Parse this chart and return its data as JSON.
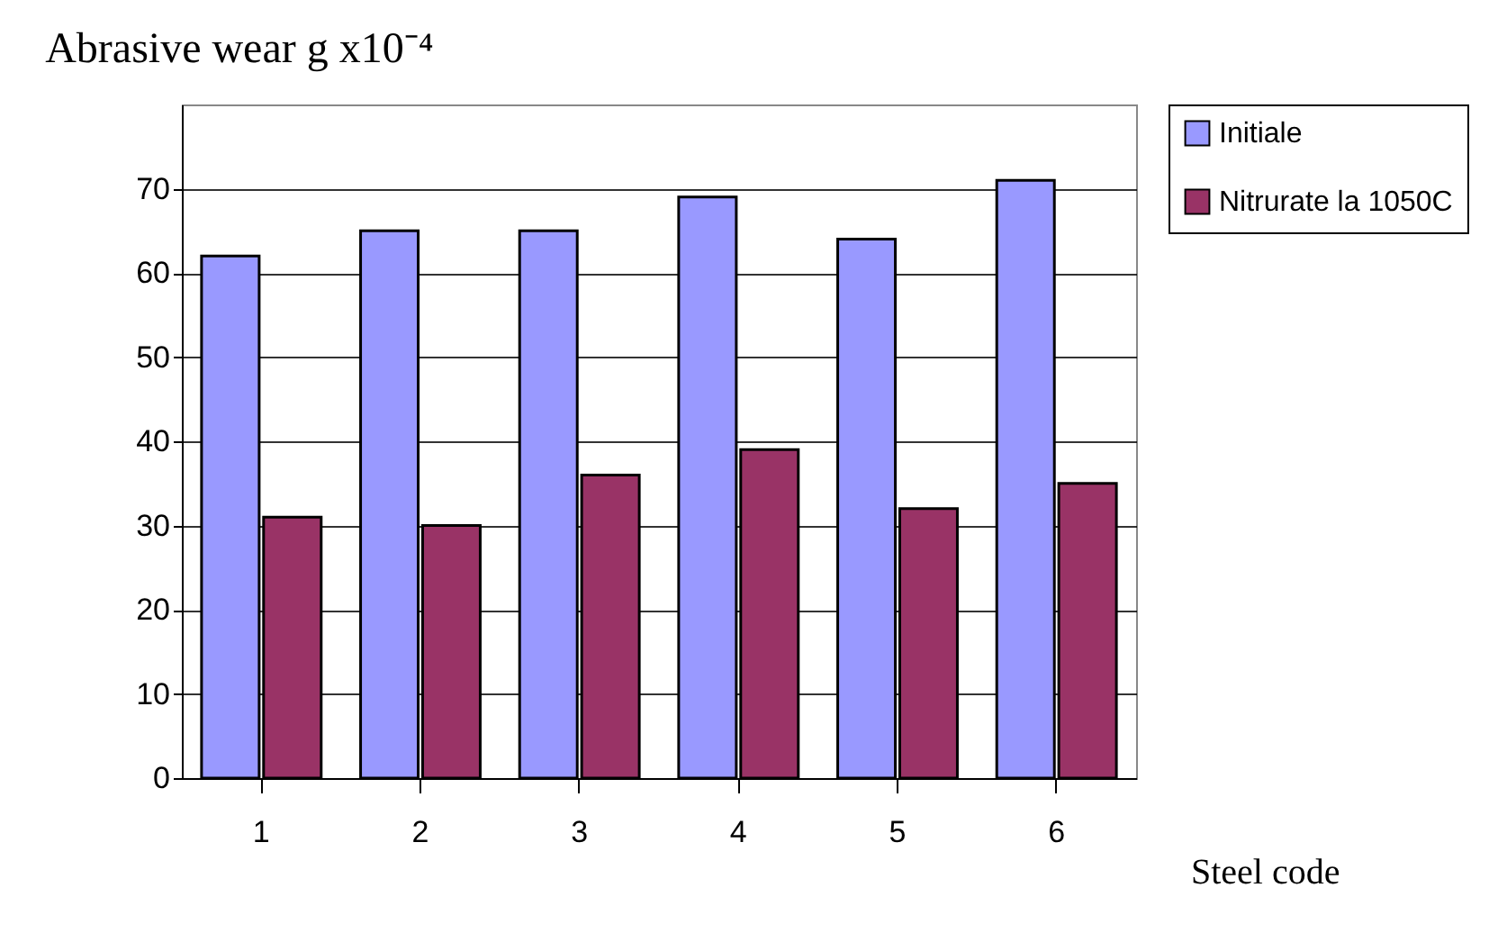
{
  "chart_data": {
    "type": "bar",
    "title": "Abrasive wear g x10⁻⁴",
    "xlabel": "Steel code",
    "categories": [
      "1",
      "2",
      "3",
      "4",
      "5",
      "6"
    ],
    "series": [
      {
        "name": "Initiale",
        "color": "#9999ff",
        "values": [
          62,
          65,
          65,
          69,
          64,
          71
        ]
      },
      {
        "name": "Nitrurate la 1050C",
        "color": "#993366",
        "values": [
          31,
          30,
          36,
          39,
          32,
          35
        ]
      }
    ],
    "ylim": [
      0,
      80
    ],
    "yticks": [
      0,
      10,
      20,
      30,
      40,
      50,
      60,
      70
    ],
    "grid": "y",
    "legend": "right"
  }
}
